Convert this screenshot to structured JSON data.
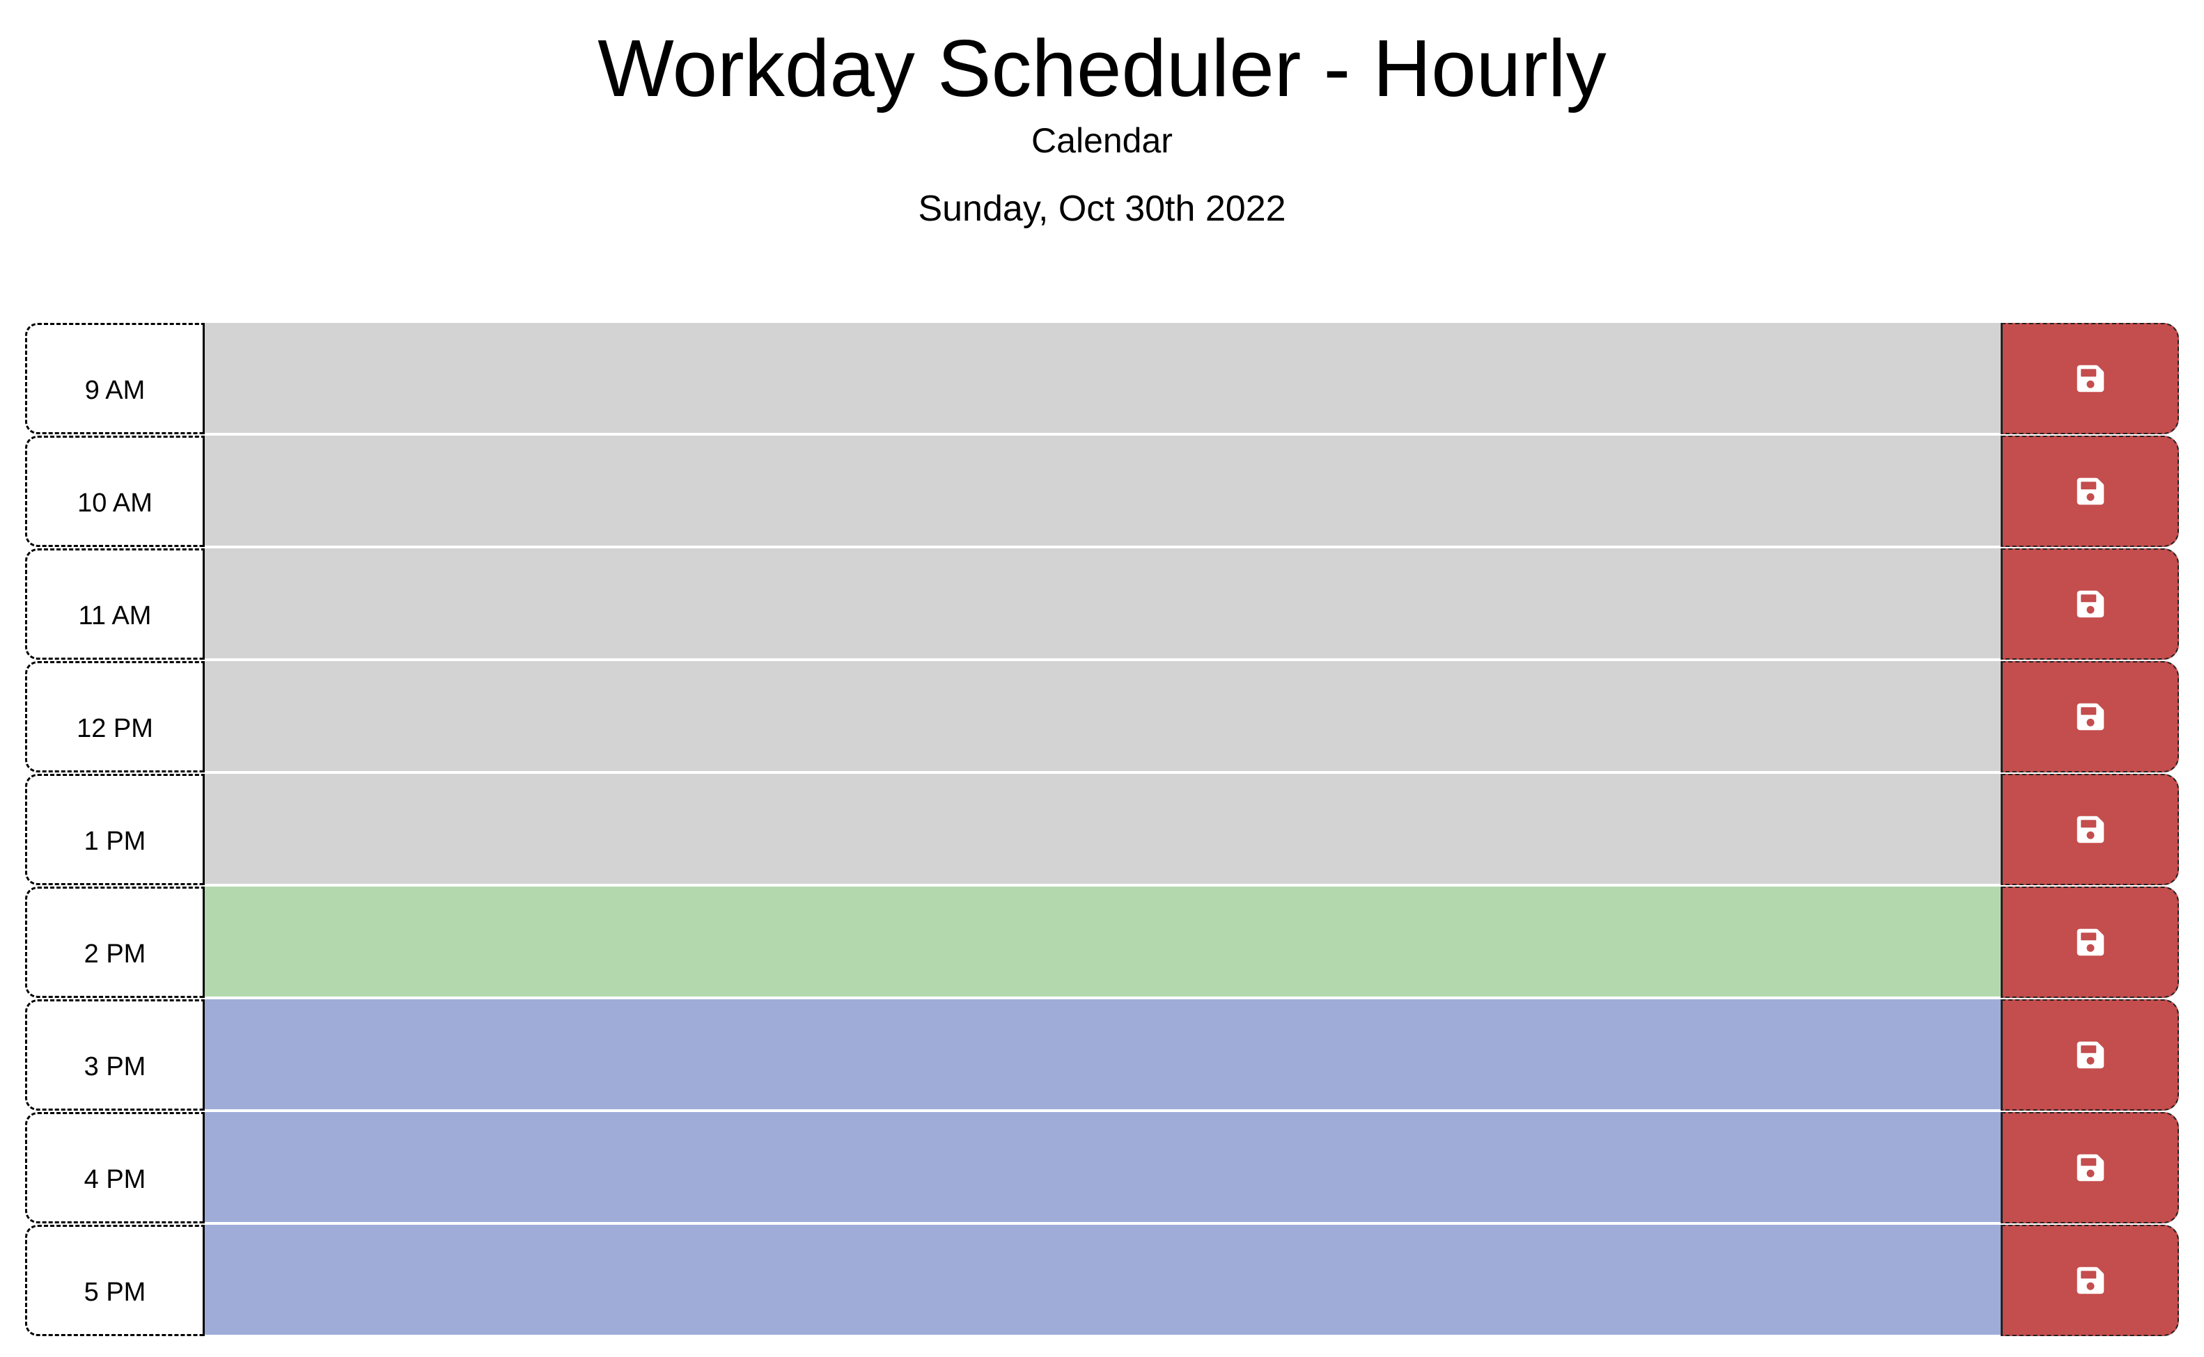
{
  "header": {
    "title": "Workday Scheduler - Hourly",
    "subtitle": "Calendar",
    "current_date": "Sunday, Oct 30th 2022"
  },
  "schedule": {
    "rows": [
      {
        "hour": "9 AM",
        "status": "past",
        "text": ""
      },
      {
        "hour": "10 AM",
        "status": "past",
        "text": ""
      },
      {
        "hour": "11 AM",
        "status": "past",
        "text": ""
      },
      {
        "hour": "12 PM",
        "status": "past",
        "text": ""
      },
      {
        "hour": "1 PM",
        "status": "past",
        "text": ""
      },
      {
        "hour": "2 PM",
        "status": "present",
        "text": ""
      },
      {
        "hour": "3 PM",
        "status": "future",
        "text": ""
      },
      {
        "hour": "4 PM",
        "status": "future",
        "text": ""
      },
      {
        "hour": "5 PM",
        "status": "future",
        "text": ""
      }
    ],
    "save_icon": "floppy-disk-icon"
  },
  "colors": {
    "past": "#d3d3d3",
    "present": "#b4d8ae",
    "future": "#9facd8",
    "save_button": "#c44d4d",
    "save_icon": "#ffffff"
  }
}
